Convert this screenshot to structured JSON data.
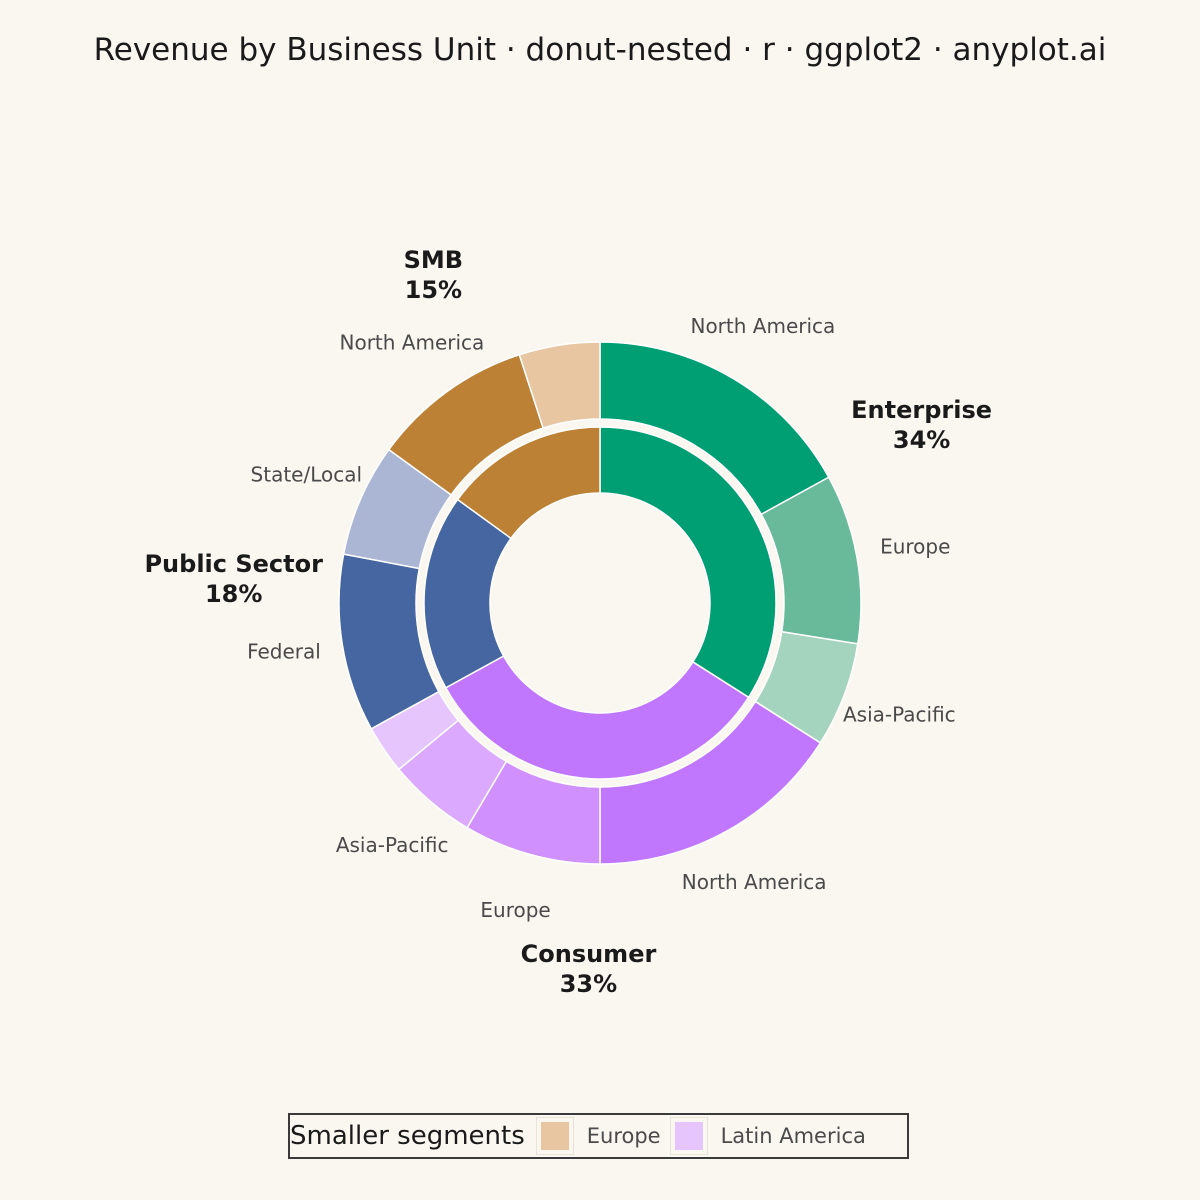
{
  "title": "Revenue by Business Unit · donut-nested · r · ggplot2 · anyplot.ai",
  "chart_data": {
    "type": "donut-nested",
    "title": "Revenue by Business Unit · donut-nested · r · ggplot2 · anyplot.ai",
    "inner": [
      {
        "name": "Enterprise",
        "pct_label": "34%",
        "value": 34,
        "color": "#009E73"
      },
      {
        "name": "Consumer",
        "pct_label": "33%",
        "value": 33,
        "color": "#C077FD"
      },
      {
        "name": "Public Sector",
        "pct_label": "18%",
        "value": 18,
        "color": "#4566A0"
      },
      {
        "name": "SMB",
        "pct_label": "15%",
        "value": 15,
        "color": "#BC8135"
      }
    ],
    "outer": [
      {
        "parent": "Enterprise",
        "name": "North America",
        "value": 17,
        "color": "#009E73",
        "labeled": true
      },
      {
        "parent": "Enterprise",
        "name": "Europe",
        "value": 10.5,
        "color": "#68BA9A",
        "labeled": true
      },
      {
        "parent": "Enterprise",
        "name": "Asia-Pacific",
        "value": 6.5,
        "color": "#A5D4BE",
        "labeled": true
      },
      {
        "parent": "Consumer",
        "name": "North America",
        "value": 16,
        "color": "#C077FD",
        "labeled": true
      },
      {
        "parent": "Consumer",
        "name": "Europe",
        "value": 8.5,
        "color": "#D090FD",
        "labeled": true
      },
      {
        "parent": "Consumer",
        "name": "Asia-Pacific",
        "value": 5.5,
        "color": "#DBA9FD",
        "labeled": true
      },
      {
        "parent": "Consumer",
        "name": "Latin America",
        "value": 3,
        "color": "#E6C5FD",
        "labeled": false
      },
      {
        "parent": "Public Sector",
        "name": "Federal",
        "value": 11,
        "color": "#4566A0",
        "labeled": true
      },
      {
        "parent": "Public Sector",
        "name": "State/Local",
        "value": 7,
        "color": "#ABB6D4",
        "labeled": true
      },
      {
        "parent": "SMB",
        "name": "North America",
        "value": 10,
        "color": "#BC8135",
        "labeled": true
      },
      {
        "parent": "SMB",
        "name": "Europe",
        "value": 5,
        "color": "#E7C6A1",
        "labeled": false
      }
    ],
    "legend": {
      "title": "Smaller segments",
      "position": "bottom",
      "items": [
        {
          "label": "Europe",
          "color": "#E7C6A1"
        },
        {
          "label": "Latin America",
          "color": "#E6C5FD"
        }
      ]
    }
  }
}
